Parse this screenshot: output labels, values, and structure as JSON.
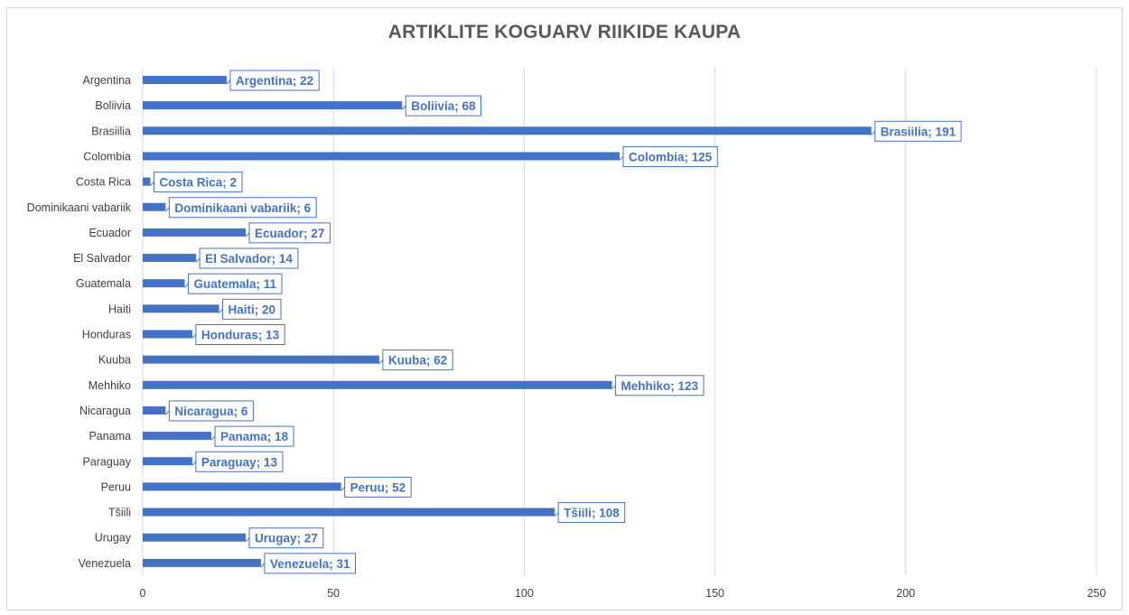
{
  "chart_data": {
    "type": "bar",
    "orientation": "horizontal",
    "title": "ARTIKLITE KOGUARV RIIKIDE KAUPA",
    "xlabel": "",
    "ylabel": "",
    "categories": [
      "Argentina",
      "Boliivia",
      "Brasiilia",
      "Colombia",
      "Costa Rica",
      "Dominikaani vabariik",
      "Ecuador",
      "El Salvador",
      "Guatemala",
      "Haiti",
      "Honduras",
      "Kuuba",
      "Mehhiko",
      "Nicaragua",
      "Panama",
      "Paraguay",
      "Peruu",
      "Tšiili",
      "Urugay",
      "Venezuela"
    ],
    "values": [
      22,
      68,
      191,
      125,
      2,
      6,
      27,
      14,
      11,
      20,
      13,
      62,
      123,
      6,
      18,
      13,
      52,
      108,
      27,
      31
    ],
    "data_labels": [
      "Argentina; 22",
      "Boliivia; 68",
      "Brasiilia; 191",
      "Colombia; 125",
      "Costa Rica; 2",
      "Dominikaani vabariik; 6",
      "Ecuador; 27",
      "El Salvador; 14",
      "Guatemala; 11",
      "Haiti; 20",
      "Honduras; 13",
      "Kuuba; 62",
      "Mehhiko; 123",
      "Nicaragua; 6",
      "Panama; 18",
      "Paraguay; 13",
      "Peruu; 52",
      "Tšiili; 108",
      "Urugay; 27",
      "Venezuela; 31"
    ],
    "xlim": [
      0,
      250
    ],
    "x_ticks": [
      "0",
      "50",
      "100",
      "150",
      "200",
      "250"
    ],
    "grid": true,
    "legend": "none",
    "colors": {
      "bar": "#4472c4",
      "label_text": "#4472c4",
      "label_border": "#4472c4",
      "grid": "#d9d9d9",
      "axis_text": "#404040",
      "title": "#595959"
    }
  }
}
